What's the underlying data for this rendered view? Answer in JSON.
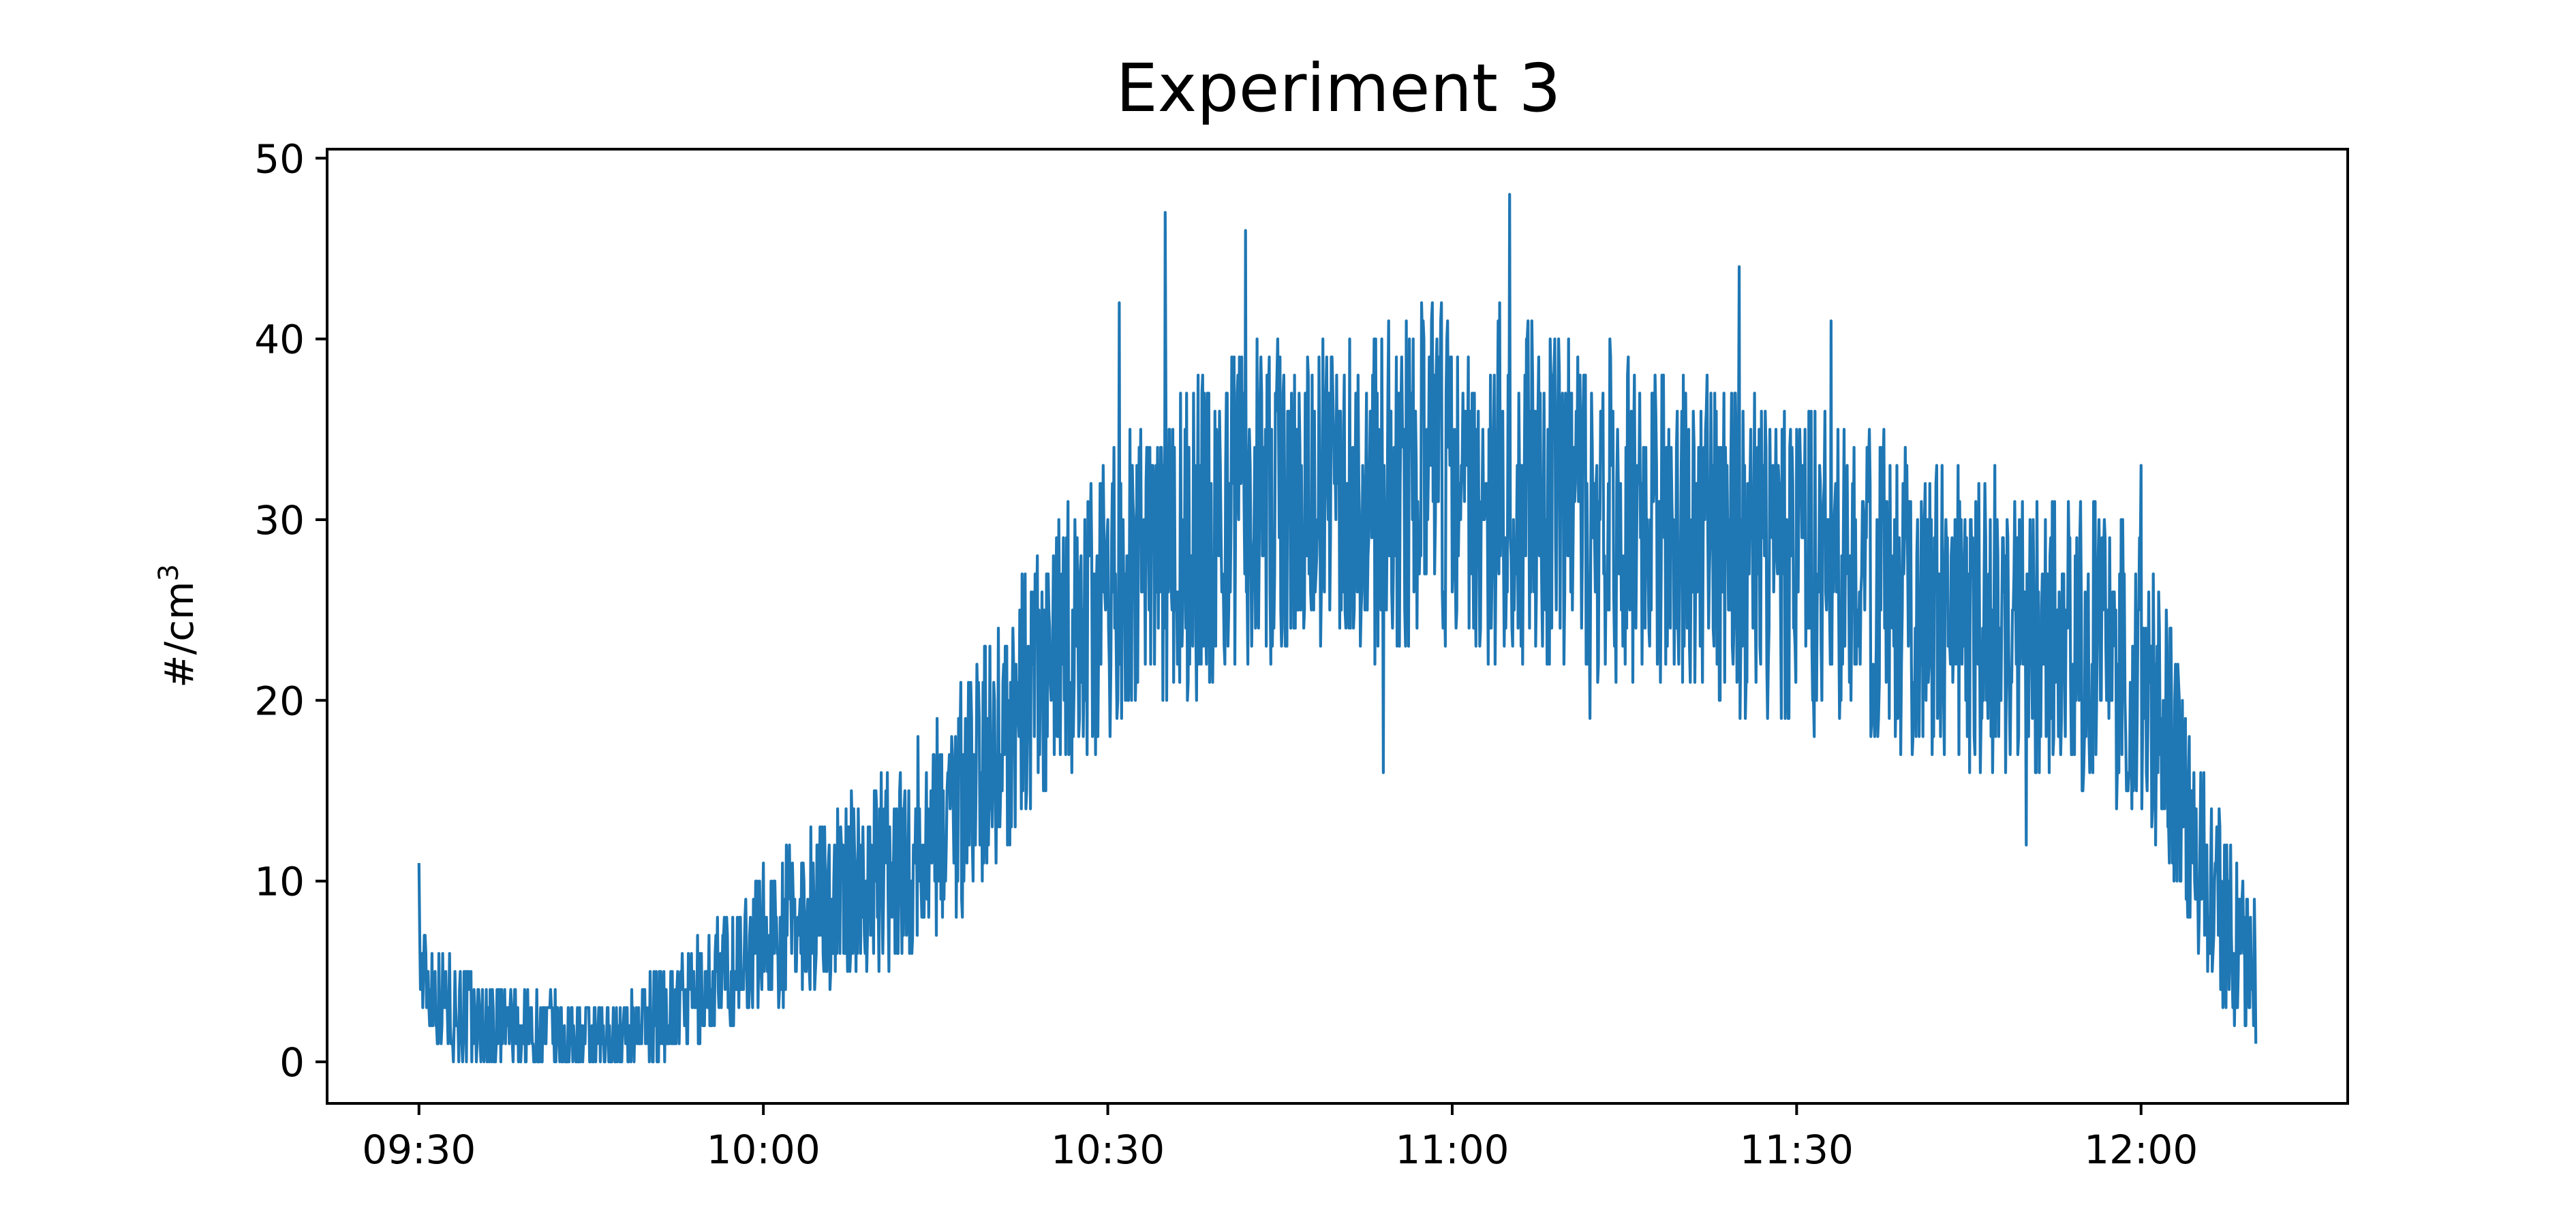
{
  "chart_data": {
    "type": "line",
    "title": "Experiment 3",
    "xlabel": "",
    "ylabel": "#/cm",
    "ylabel_superscript": "3",
    "xticks": [
      "09:30",
      "10:00",
      "10:30",
      "11:00",
      "11:30",
      "12:00"
    ],
    "yticks": [
      "0",
      "10",
      "20",
      "30",
      "40",
      "50"
    ],
    "xlim": [
      "09:22",
      "12:18"
    ],
    "ylim": [
      -2.3,
      50.5
    ],
    "grid": false,
    "legend": false,
    "series": [
      {
        "color": "#1f77b4",
        "start_time": "09:30",
        "end_time": "12:10",
        "points": [
          [
            "09:30",
            5
          ],
          [
            "09:32",
            3.5
          ],
          [
            "09:34",
            2.5
          ],
          [
            "09:36",
            2
          ],
          [
            "09:38",
            2
          ],
          [
            "09:40",
            1.5
          ],
          [
            "09:42",
            1.5
          ],
          [
            "09:44",
            1
          ],
          [
            "09:46",
            1
          ],
          [
            "09:48",
            1.5
          ],
          [
            "09:50",
            2.5
          ],
          [
            "09:52",
            3
          ],
          [
            "09:54",
            3.5
          ],
          [
            "09:56",
            4.5
          ],
          [
            "09:58",
            5.5
          ],
          [
            "10:00",
            7
          ],
          [
            "10:03",
            8
          ],
          [
            "10:06",
            9
          ],
          [
            "10:09",
            10
          ],
          [
            "10:12",
            11
          ],
          [
            "10:15",
            13
          ],
          [
            "10:18",
            15.5
          ],
          [
            "10:21",
            18
          ],
          [
            "10:24",
            21
          ],
          [
            "10:27",
            23.5
          ],
          [
            "10:30",
            25.5
          ],
          [
            "10:33",
            27
          ],
          [
            "10:36",
            28.5
          ],
          [
            "10:39",
            29.5
          ],
          [
            "10:42",
            30.5
          ],
          [
            "10:45",
            31
          ],
          [
            "10:48",
            31.5
          ],
          [
            "10:51",
            32
          ],
          [
            "10:54",
            32
          ],
          [
            "10:57",
            32
          ],
          [
            "11:00",
            32
          ],
          [
            "11:03",
            32
          ],
          [
            "11:06",
            31.5
          ],
          [
            "11:09",
            31
          ],
          [
            "11:12",
            30.5
          ],
          [
            "11:15",
            30
          ],
          [
            "11:18",
            29.5
          ],
          [
            "11:21",
            29
          ],
          [
            "11:24",
            28.5
          ],
          [
            "11:27",
            28
          ],
          [
            "11:30",
            27.5
          ],
          [
            "11:33",
            27
          ],
          [
            "11:36",
            26.5
          ],
          [
            "11:39",
            26
          ],
          [
            "11:42",
            25
          ],
          [
            "11:45",
            24.5
          ],
          [
            "11:48",
            24
          ],
          [
            "11:51",
            23.5
          ],
          [
            "11:54",
            23
          ],
          [
            "11:57",
            22.5
          ],
          [
            "12:00",
            21.5
          ],
          [
            "12:02",
            18.5
          ],
          [
            "12:04",
            14
          ],
          [
            "12:06",
            10
          ],
          [
            "12:08",
            7
          ],
          [
            "12:10",
            5
          ]
        ],
        "noise_amplitude_by_time": [
          [
            "09:30",
            3
          ],
          [
            "09:48",
            2
          ],
          [
            "10:00",
            4
          ],
          [
            "10:20",
            7
          ],
          [
            "10:40",
            9
          ],
          [
            "11:00",
            10
          ],
          [
            "11:30",
            9
          ],
          [
            "12:00",
            8
          ],
          [
            "12:10",
            4
          ]
        ],
        "peak_values": [
          [
            "09:30",
            11
          ],
          [
            "10:31",
            42
          ],
          [
            "10:35",
            47
          ],
          [
            "10:42",
            46
          ],
          [
            "10:54",
            16
          ],
          [
            "11:05",
            48
          ],
          [
            "11:12",
            19
          ],
          [
            "11:25",
            44
          ],
          [
            "11:33",
            41
          ],
          [
            "11:50",
            12
          ],
          [
            "12:00",
            33
          ],
          [
            "12:10",
            1
          ]
        ]
      }
    ]
  }
}
